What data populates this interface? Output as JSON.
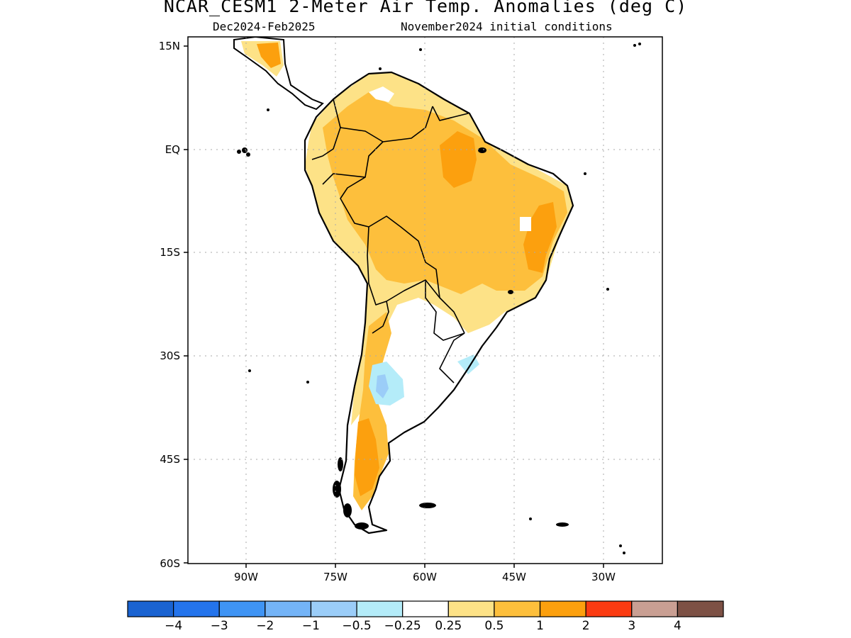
{
  "title": "NCAR_CESM1 2-Meter Air Temp. Anomalies (deg C)",
  "subtitle_left": "Dec2024-Feb2025",
  "subtitle_right": "November2024 initial conditions",
  "lat_ticks": [
    "15N",
    "EQ",
    "15S",
    "30S",
    "45S",
    "60S"
  ],
  "lon_ticks": [
    "90W",
    "75W",
    "60W",
    "45W",
    "30W"
  ],
  "colorbar": {
    "colors": [
      "#1a63d1",
      "#2474ec",
      "#3f94f4",
      "#74b4f7",
      "#9bcdf8",
      "#b4ecf9",
      "#ffffff",
      "#fde287",
      "#fdbf3c",
      "#fca00e",
      "#fb3b12",
      "#c99f93",
      "#7d5145"
    ],
    "labels": [
      "-4",
      "-3",
      "-2",
      "-1",
      "-0.5",
      "-0.25",
      "0.25",
      "0.5",
      "1",
      "2",
      "3",
      "4"
    ]
  },
  "map_colors": {
    "weak_warm": "#fde287",
    "warm": "#fdbf3c",
    "strong_warm": "#fca00e",
    "weak_cool": "#b4ecf9",
    "cool": "#9bcdf8"
  }
}
